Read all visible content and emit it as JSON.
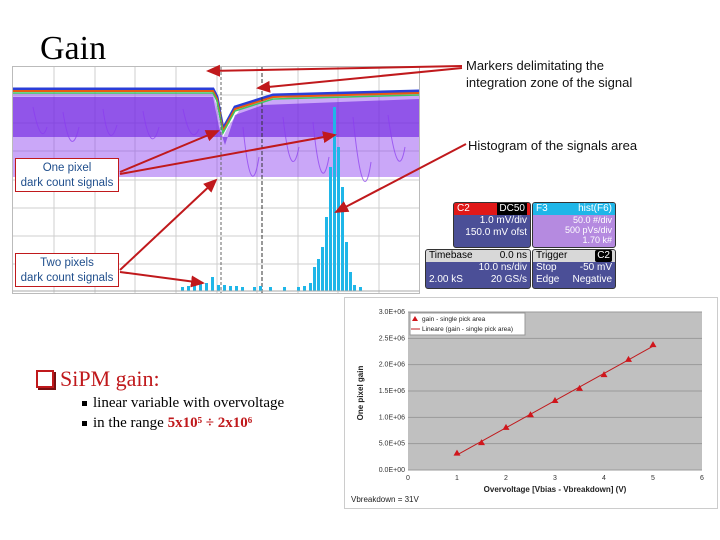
{
  "slide": {
    "title": "Gain",
    "annotations": {
      "markers": "Markers delimitating the integration zone of the signal",
      "markers_line1": "Markers delimitating the",
      "markers_line2": "integration zone of the signal",
      "histogram": "Histogram of the signals area"
    },
    "callouts": {
      "one_pixel_line1": "One pixel",
      "one_pixel_line2": "dark count signals",
      "two_pixels_line1": "Two pixels",
      "two_pixels_line2": "dark count signals"
    },
    "bullets": {
      "main": "SiPM gain:",
      "items": [
        {
          "text": "linear variable with overvoltage"
        },
        {
          "prefix": "in the range ",
          "highlight": "5x10⁵ ÷ 2x10⁶"
        }
      ]
    }
  },
  "oscilloscope": {
    "channel_panel": {
      "label": "C2",
      "badge": "DC50",
      "vdiv": "1.0 mV/div",
      "offset": "150.0 mV ofst"
    },
    "math_panel": {
      "label": "F3",
      "badge": "hist(F6)",
      "scale": "50.0 #/div",
      "pvs": "500 pVs/div",
      "count": "1.70 k#"
    },
    "timebase_panel": {
      "label": "Timebase",
      "delay": "0.0 ns",
      "tdiv": "10.0 ns/div",
      "samples": "2.00 kS",
      "rate": "20 GS/s"
    },
    "trigger_panel": {
      "label": "Trigger",
      "source": "C2",
      "mode": "Stop",
      "level": "-50 mV",
      "type": "Edge",
      "slope": "Negative"
    },
    "colors": {
      "persistence": "#7a2ee0",
      "histogram": "#1fb6e8",
      "arrow": "#c0191c"
    }
  },
  "chart_data": {
    "type": "scatter",
    "title": "",
    "xlabel": "Overvoltage [Vbias - Vbreakdown] (V)",
    "ylabel": "One pixel gain",
    "xlim": [
      0,
      6
    ],
    "ylim": [
      0,
      3000000
    ],
    "x_ticks": [
      "0",
      "1",
      "2",
      "3",
      "4",
      "5",
      "6"
    ],
    "y_ticks": [
      "0.0E+00",
      "5.0E+05",
      "1.0E+06",
      "1.5E+06",
      "2.0E+06",
      "2.5E+06",
      "3.0E+06"
    ],
    "grid": true,
    "legend_position": "top-left",
    "series": [
      {
        "name": "gain - single pick area",
        "marker": "triangle",
        "color": "#d0161c",
        "x": [
          1,
          1.5,
          2,
          2.5,
          3,
          3.5,
          4,
          4.5,
          5
        ],
        "y": [
          320000,
          520000,
          810000,
          1050000,
          1320000,
          1550000,
          1810000,
          2100000,
          2380000
        ]
      },
      {
        "name": "Lineare (gain - single pick area)",
        "line": "linear-fit",
        "color": "#d0161c"
      }
    ],
    "annotation": "Vbreakdown = 31V"
  }
}
